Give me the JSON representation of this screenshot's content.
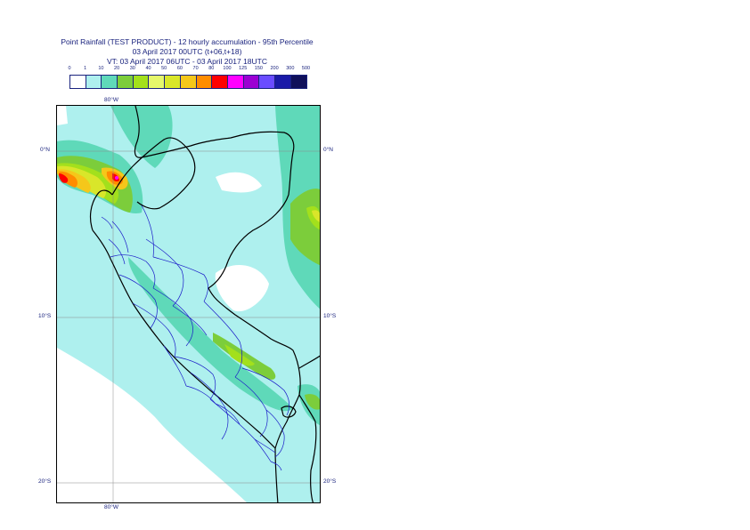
{
  "header": {
    "title": "Point Rainfall (TEST PRODUCT) - 12 hourly accumulation - 95th Percentile",
    "base_time": "03 April 2017 00UTC (t+06,t+18)",
    "valid_time": "VT: 03 April 2017 06UTC - 03 April 2017 18UTC"
  },
  "legend": {
    "ticks": [
      "0",
      "1",
      "10",
      "20",
      "30",
      "40",
      "50",
      "60",
      "70",
      "80",
      "100",
      "125",
      "150",
      "200",
      "300",
      "500"
    ],
    "colors": [
      "#ffffff",
      "#aef0ee",
      "#5fd9b9",
      "#7ccd3b",
      "#a3e01c",
      "#e5f76b",
      "#d9e62a",
      "#f5c71a",
      "#ff8c00",
      "#ff0000",
      "#ff00ff",
      "#9b00d3",
      "#6a4cff",
      "#1a1aa8",
      "#10105a"
    ]
  },
  "map": {
    "lon_labels": {
      "top": "80°W",
      "bottom": "80°W"
    },
    "lat_labels": [
      {
        "left": "0°N",
        "right": "0°N"
      },
      {
        "left": "10°S",
        "right": "10°S"
      },
      {
        "left": "20°S",
        "right": "20°S"
      }
    ]
  }
}
